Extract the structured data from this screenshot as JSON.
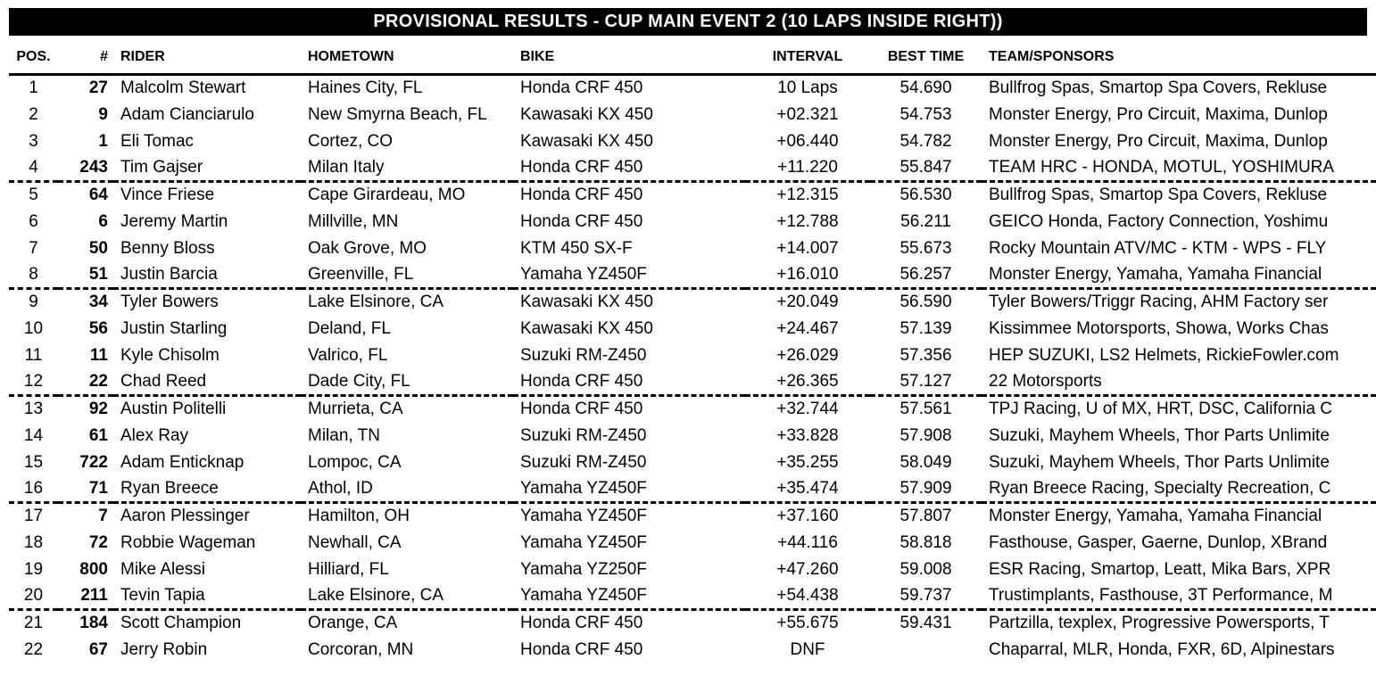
{
  "title": "PROVISIONAL RESULTS - CUP MAIN EVENT 2 (10 LAPS INSIDE RIGHT))",
  "colors": {
    "title_bar_bg": "#000000",
    "title_text": "#ffffff",
    "body_text": "#000000",
    "background": "#ffffff"
  },
  "layout_hints": {
    "separator_group_size": 4
  },
  "columns": [
    "POS.",
    "#",
    "RIDER",
    "HOMETOWN",
    "BIKE",
    "INTERVAL",
    "BEST TIME",
    "TEAM/SPONSORS"
  ],
  "rows": [
    {
      "pos": "1",
      "num": "27",
      "rider": "Malcolm Stewart",
      "hometown": "Haines City, FL",
      "bike": "Honda CRF 450",
      "interval": "10 Laps",
      "best_time": "54.690",
      "team": "Bullfrog Spas, Smartop Spa Covers, Rekluse"
    },
    {
      "pos": "2",
      "num": "9",
      "rider": "Adam Cianciarulo",
      "hometown": "New Smyrna Beach, FL",
      "bike": "Kawasaki KX 450",
      "interval": "+02.321",
      "best_time": "54.753",
      "team": "Monster Energy, Pro Circuit, Maxima, Dunlop"
    },
    {
      "pos": "3",
      "num": "1",
      "rider": "Eli Tomac",
      "hometown": "Cortez, CO",
      "bike": "Kawasaki KX 450",
      "interval": "+06.440",
      "best_time": "54.782",
      "team": "Monster Energy, Pro Circuit, Maxima, Dunlop"
    },
    {
      "pos": "4",
      "num": "243",
      "rider": "Tim Gajser",
      "hometown": "Milan Italy",
      "bike": "Honda CRF 450",
      "interval": "+11.220",
      "best_time": "55.847",
      "team": "TEAM HRC - HONDA, MOTUL, YOSHIMURA"
    },
    {
      "pos": "5",
      "num": "64",
      "rider": "Vince Friese",
      "hometown": "Cape Girardeau, MO",
      "bike": "Honda CRF 450",
      "interval": "+12.315",
      "best_time": "56.530",
      "team": "Bullfrog Spas, Smartop Spa Covers, Rekluse"
    },
    {
      "pos": "6",
      "num": "6",
      "rider": "Jeremy Martin",
      "hometown": "Millville, MN",
      "bike": "Honda CRF 450",
      "interval": "+12.788",
      "best_time": "56.211",
      "team": "GEICO Honda, Factory Connection, Yoshimu"
    },
    {
      "pos": "7",
      "num": "50",
      "rider": "Benny Bloss",
      "hometown": "Oak Grove, MO",
      "bike": "KTM 450 SX-F",
      "interval": "+14.007",
      "best_time": "55.673",
      "team": "Rocky Mountain ATV/MC - KTM - WPS - FLY"
    },
    {
      "pos": "8",
      "num": "51",
      "rider": "Justin Barcia",
      "hometown": "Greenville, FL",
      "bike": "Yamaha YZ450F",
      "interval": "+16.010",
      "best_time": "56.257",
      "team": "Monster Energy, Yamaha, Yamaha Financial"
    },
    {
      "pos": "9",
      "num": "34",
      "rider": "Tyler Bowers",
      "hometown": "Lake Elsinore, CA",
      "bike": "Kawasaki KX 450",
      "interval": "+20.049",
      "best_time": "56.590",
      "team": "Tyler Bowers/Triggr Racing, AHM Factory ser"
    },
    {
      "pos": "10",
      "num": "56",
      "rider": "Justin Starling",
      "hometown": "Deland, FL",
      "bike": "Kawasaki KX 450",
      "interval": "+24.467",
      "best_time": "57.139",
      "team": "Kissimmee Motorsports, Showa, Works Chas"
    },
    {
      "pos": "11",
      "num": "11",
      "rider": "Kyle Chisolm",
      "hometown": "Valrico, FL",
      "bike": "Suzuki RM-Z450",
      "interval": "+26.029",
      "best_time": "57.356",
      "team": "HEP SUZUKI, LS2 Helmets, RickieFowler.com"
    },
    {
      "pos": "12",
      "num": "22",
      "rider": "Chad Reed",
      "hometown": "Dade City, FL",
      "bike": "Honda CRF 450",
      "interval": "+26.365",
      "best_time": "57.127",
      "team": "22 Motorsports"
    },
    {
      "pos": "13",
      "num": "92",
      "rider": "Austin Politelli",
      "hometown": "Murrieta, CA",
      "bike": "Honda CRF 450",
      "interval": "+32.744",
      "best_time": "57.561",
      "team": "TPJ Racing, U of MX, HRT, DSC, California C"
    },
    {
      "pos": "14",
      "num": "61",
      "rider": "Alex Ray",
      "hometown": "Milan, TN",
      "bike": "Suzuki RM-Z450",
      "interval": "+33.828",
      "best_time": "57.908",
      "team": "Suzuki, Mayhem Wheels, Thor Parts Unlimite"
    },
    {
      "pos": "15",
      "num": "722",
      "rider": "Adam Enticknap",
      "hometown": "Lompoc, CA",
      "bike": "Suzuki RM-Z450",
      "interval": "+35.255",
      "best_time": "58.049",
      "team": "Suzuki, Mayhem Wheels, Thor Parts Unlimite"
    },
    {
      "pos": "16",
      "num": "71",
      "rider": "Ryan Breece",
      "hometown": "Athol, ID",
      "bike": "Yamaha YZ450F",
      "interval": "+35.474",
      "best_time": "57.909",
      "team": "Ryan Breece Racing, Specialty Recreation, C"
    },
    {
      "pos": "17",
      "num": "7",
      "rider": "Aaron Plessinger",
      "hometown": "Hamilton, OH",
      "bike": "Yamaha YZ450F",
      "interval": "+37.160",
      "best_time": "57.807",
      "team": "Monster Energy, Yamaha, Yamaha Financial"
    },
    {
      "pos": "18",
      "num": "72",
      "rider": "Robbie Wageman",
      "hometown": "Newhall, CA",
      "bike": "Yamaha YZ450F",
      "interval": "+44.116",
      "best_time": "58.818",
      "team": "Fasthouse, Gasper, Gaerne, Dunlop, XBrand"
    },
    {
      "pos": "19",
      "num": "800",
      "rider": "Mike Alessi",
      "hometown": "Hilliard, FL",
      "bike": "Yamaha YZ250F",
      "interval": "+47.260",
      "best_time": "59.008",
      "team": "ESR Racing, Smartop, Leatt, Mika Bars, XPR"
    },
    {
      "pos": "20",
      "num": "211",
      "rider": "Tevin Tapia",
      "hometown": "Lake Elsinore, CA",
      "bike": "Yamaha YZ450F",
      "interval": "+54.438",
      "best_time": "59.737",
      "team": "Trustimplants, Fasthouse, 3T Performance, M"
    },
    {
      "pos": "21",
      "num": "184",
      "rider": "Scott Champion",
      "hometown": "Orange, CA",
      "bike": "Honda CRF 450",
      "interval": "+55.675",
      "best_time": "59.431",
      "team": "Partzilla, texplex, Progressive Powersports, T"
    },
    {
      "pos": "22",
      "num": "67",
      "rider": "Jerry Robin",
      "hometown": "Corcoran, MN",
      "bike": "Honda CRF 450",
      "interval": "DNF",
      "best_time": "",
      "team": "Chaparral, MLR, Honda, FXR, 6D, Alpinestars"
    }
  ]
}
